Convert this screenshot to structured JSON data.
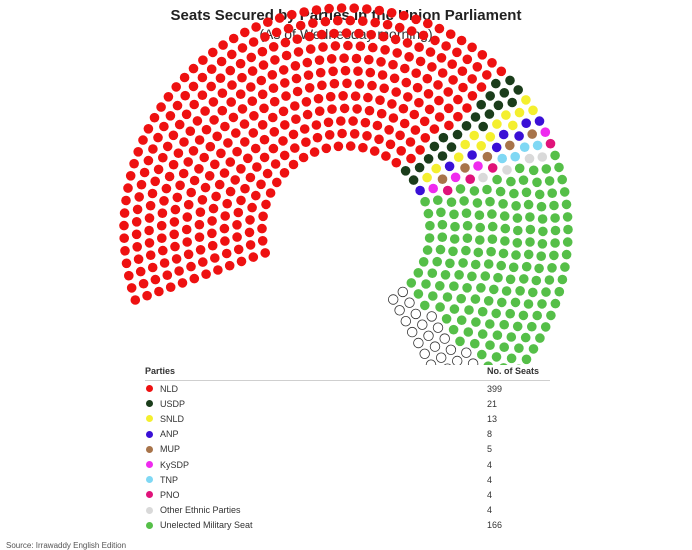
{
  "title": "Seats Secured by Parties in the Union Parliament",
  "subtitle": "(As of Wednesday morning)",
  "legend_header": {
    "party": "Parties",
    "seats": "No. of Seats"
  },
  "source": "Source: Irrawaddy English Edition",
  "chart_data": {
    "type": "parliament",
    "title": "Seats Secured by Parties in the Union Parliament",
    "subtitle": "(As of Wednesday morning)",
    "vacant_seats": 40,
    "series": [
      {
        "name": "NLD",
        "seats": 399,
        "color": "#ee1111"
      },
      {
        "name": "USDP",
        "seats": 21,
        "color": "#1b3d1b"
      },
      {
        "name": "SNLD",
        "seats": 13,
        "color": "#f4ef2e"
      },
      {
        "name": "ANP",
        "seats": 8,
        "color": "#3a10d6"
      },
      {
        "name": "MUP",
        "seats": 5,
        "color": "#a8744a"
      },
      {
        "name": "KySDP",
        "seats": 4,
        "color": "#ef2bef"
      },
      {
        "name": "TNP",
        "seats": 4,
        "color": "#7fd8f4"
      },
      {
        "name": "PNO",
        "seats": 4,
        "color": "#e0137a"
      },
      {
        "name": "Other Ethnic Parties",
        "seats": 4,
        "color": "#d9d9d9"
      },
      {
        "name": "Unelected Military Seat",
        "seats": 166,
        "color": "#55bf48"
      }
    ]
  }
}
